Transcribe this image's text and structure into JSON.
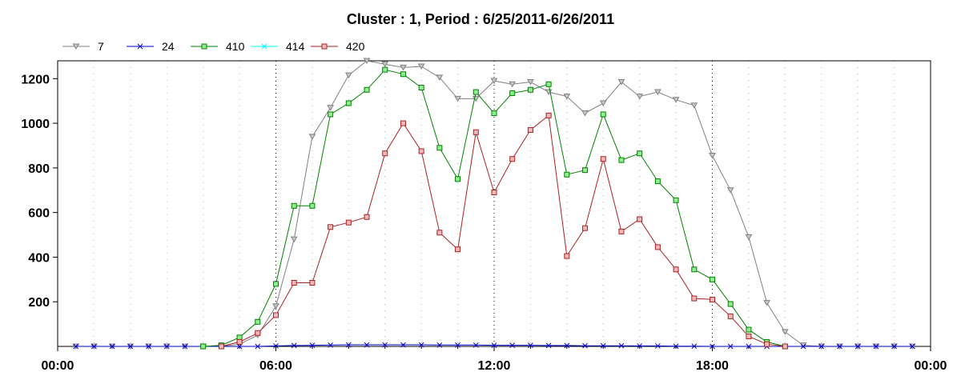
{
  "chart_data": {
    "type": "line",
    "title": "Cluster : 1, Period : 6/25/2011-6/26/2011",
    "xlabel": "",
    "ylabel": "",
    "x_unit": "hours",
    "xlim": [
      0,
      24
    ],
    "ylim": [
      0,
      1280
    ],
    "x_ticks": [
      0,
      6,
      12,
      18,
      24
    ],
    "x_tick_labels": [
      "00:00",
      "06:00",
      "12:00",
      "18:00",
      "00:00"
    ],
    "y_ticks": [
      200,
      400,
      600,
      800,
      1000,
      1200
    ],
    "y_tick_labels": [
      "200",
      "400",
      "600",
      "800",
      "1000",
      "1200"
    ],
    "grid": "vertical dotted lines",
    "legend_position": "top-left",
    "series": [
      {
        "name": "7",
        "color": "#808080",
        "marker": "triangle-down",
        "x": [
          0.5,
          1,
          1.5,
          2,
          2.5,
          3,
          3.5,
          4,
          4.5,
          5,
          5.5,
          6,
          6.5,
          7,
          7.5,
          8,
          8.5,
          9,
          9.5,
          10,
          10.5,
          11,
          11.5,
          12,
          12.5,
          13,
          13.5,
          14,
          14.5,
          15,
          15.5,
          16,
          16.5,
          17,
          17.5,
          18,
          18.5,
          19,
          19.5,
          20,
          20.5,
          21,
          21.5,
          22,
          22.5,
          23,
          23.5
        ],
        "values": [
          0,
          0,
          0,
          0,
          0,
          0,
          0,
          0,
          0,
          10,
          50,
          180,
          480,
          940,
          1070,
          1215,
          1280,
          1265,
          1250,
          1255,
          1205,
          1110,
          1110,
          1190,
          1175,
          1185,
          1140,
          1120,
          1045,
          1090,
          1185,
          1120,
          1140,
          1105,
          1080,
          855,
          700,
          490,
          195,
          65,
          5,
          0,
          0,
          0,
          0,
          0,
          0
        ]
      },
      {
        "name": "24",
        "color": "#0000cc",
        "marker": "x",
        "x": [
          0.5,
          1,
          1.5,
          2,
          2.5,
          3,
          3.5,
          4,
          4.5,
          5,
          5.5,
          6,
          6.5,
          7,
          7.5,
          8,
          8.5,
          9,
          9.5,
          10,
          10.5,
          11,
          11.5,
          12,
          12.5,
          13,
          13.5,
          14,
          14.5,
          15,
          15.5,
          16,
          16.5,
          17,
          17.5,
          18,
          18.5,
          19,
          19.5,
          20,
          20.5,
          21,
          21.5,
          22,
          22.5,
          23,
          23.5
        ],
        "values": [
          0,
          0,
          0,
          0,
          0,
          0,
          0,
          0,
          0,
          0,
          0,
          2,
          4,
          5,
          6,
          7,
          7,
          7,
          7,
          7,
          6,
          6,
          6,
          5,
          5,
          5,
          4,
          4,
          3,
          3,
          3,
          2,
          2,
          1,
          1,
          0,
          0,
          0,
          0,
          0,
          0,
          0,
          0,
          0,
          0,
          0,
          0
        ]
      },
      {
        "name": "410",
        "color": "#008000",
        "marker": "square",
        "x": [
          4,
          4.5,
          5,
          5.5,
          6,
          6.5,
          7,
          7.5,
          8,
          8.5,
          9,
          9.5,
          10,
          10.5,
          11,
          11.5,
          12,
          12.5,
          13,
          13.5,
          14,
          14.5,
          15,
          15.5,
          16,
          16.5,
          17,
          17.5,
          18,
          18.5,
          19,
          19.5,
          20
        ],
        "values": [
          0,
          5,
          40,
          110,
          280,
          630,
          630,
          1040,
          1090,
          1150,
          1240,
          1220,
          1160,
          890,
          750,
          1140,
          1045,
          1135,
          1150,
          1175,
          770,
          790,
          1040,
          835,
          865,
          740,
          655,
          345,
          300,
          190,
          75,
          20,
          0
        ]
      },
      {
        "name": "414",
        "color": "#00ffff",
        "marker": "x",
        "x": [],
        "values": []
      },
      {
        "name": "420",
        "color": "#aa2222",
        "marker": "square",
        "x": [
          4.5,
          5,
          5.5,
          6,
          6.5,
          7,
          7.5,
          8,
          8.5,
          9,
          9.5,
          10,
          10.5,
          11,
          11.5,
          12,
          12.5,
          13,
          13.5,
          14,
          14.5,
          15,
          15.5,
          16,
          16.5,
          17,
          17.5,
          18,
          18.5,
          19,
          19.5,
          20
        ],
        "values": [
          0,
          20,
          60,
          140,
          285,
          285,
          535,
          555,
          580,
          865,
          1000,
          875,
          510,
          435,
          960,
          690,
          840,
          970,
          1035,
          405,
          530,
          840,
          515,
          570,
          445,
          345,
          215,
          210,
          135,
          45,
          10,
          0
        ]
      }
    ]
  }
}
